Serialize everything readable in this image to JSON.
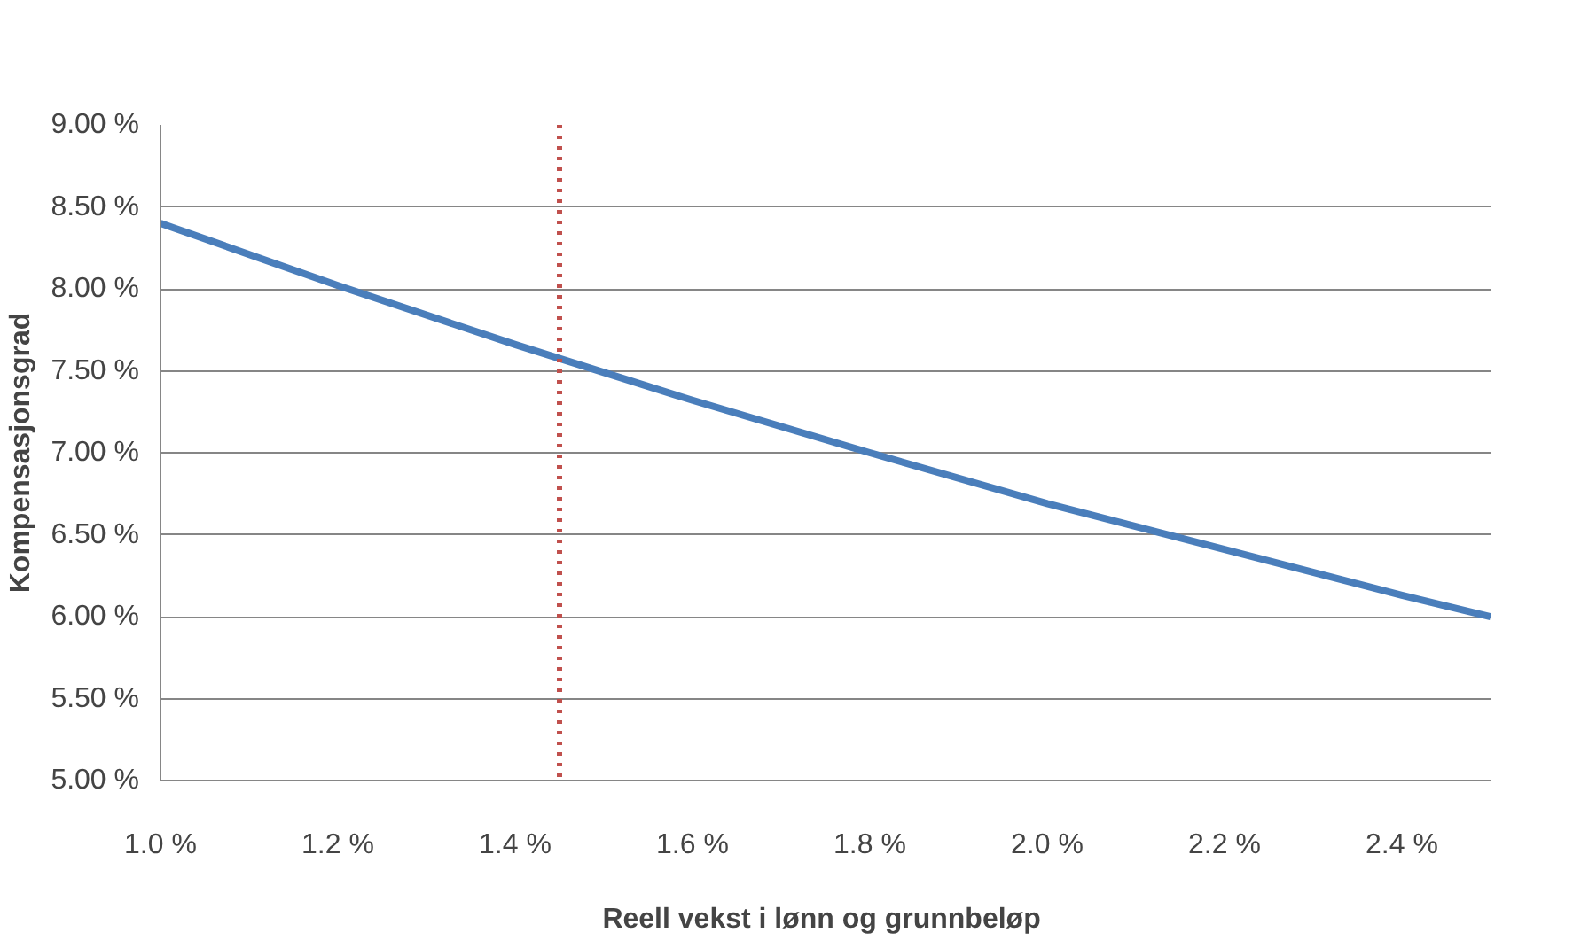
{
  "chart_data": {
    "type": "line",
    "xlabel": "Reell vekst  i lønn og grunnbeløp",
    "ylabel": "Kompensasjonsgrad",
    "x": [
      1.0,
      1.2,
      1.4,
      1.6,
      1.8,
      2.0,
      2.2,
      2.4,
      2.5
    ],
    "series": [
      {
        "color": "#4a7ebb",
        "values": [
          8.4,
          8.02,
          7.66,
          7.32,
          7.0,
          6.69,
          6.41,
          6.13,
          6.0
        ]
      }
    ],
    "xlim": [
      1.0,
      2.5
    ],
    "ylim": [
      5.0,
      9.0
    ],
    "xticks": [
      {
        "value": 1.0,
        "label": "1.0 %"
      },
      {
        "value": 1.2,
        "label": "1.2 %"
      },
      {
        "value": 1.4,
        "label": "1.4 %"
      },
      {
        "value": 1.6,
        "label": "1.6 %"
      },
      {
        "value": 1.8,
        "label": "1.8 %"
      },
      {
        "value": 2.0,
        "label": "2.0 %"
      },
      {
        "value": 2.2,
        "label": "2.2 %"
      },
      {
        "value": 2.4,
        "label": "2.4 %"
      }
    ],
    "yticks": [
      {
        "value": 5.0,
        "label": "5.00 %"
      },
      {
        "value": 5.5,
        "label": "5.50 %"
      },
      {
        "value": 6.0,
        "label": "6.00 %"
      },
      {
        "value": 6.5,
        "label": "6.50 %"
      },
      {
        "value": 7.0,
        "label": "7.00 %"
      },
      {
        "value": 7.5,
        "label": "7.50 %"
      },
      {
        "value": 8.0,
        "label": "8.00 %"
      },
      {
        "value": 8.5,
        "label": "8.50 %"
      },
      {
        "value": 9.0,
        "label": "9.00 %"
      }
    ],
    "ref_lines": [
      {
        "axis": "x",
        "value": 1.45,
        "color": "#c0504d",
        "line_style": "dotted"
      }
    ],
    "grid": "y",
    "line_style": "solid",
    "marker": "none"
  }
}
